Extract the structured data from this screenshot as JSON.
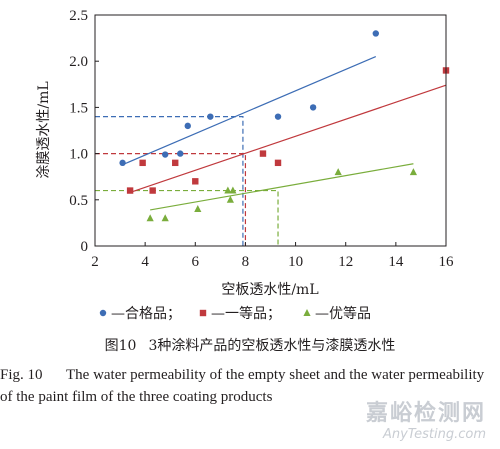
{
  "chart_data": {
    "type": "scatter",
    "xlabel": "空板透水性/mL",
    "ylabel": "涂膜透水性/mL",
    "xlim": [
      2,
      16
    ],
    "ylim": [
      0,
      2.5
    ],
    "xticks": [
      2,
      4,
      6,
      8,
      10,
      12,
      14,
      16
    ],
    "yticks": [
      0,
      0.5,
      1.0,
      1.5,
      2.0,
      2.5
    ],
    "ytick_labels": [
      "0",
      "0.5",
      "1.0",
      "1.5",
      "2.0",
      "2.5"
    ],
    "grid": false,
    "legend_position": "bottom",
    "series": [
      {
        "name": "合格品",
        "color": "#3d6db5",
        "marker": "circle",
        "points": [
          [
            3.1,
            0.9
          ],
          [
            4.8,
            0.99
          ],
          [
            5.4,
            1.0
          ],
          [
            5.7,
            1.3
          ],
          [
            6.6,
            1.4
          ],
          [
            9.3,
            1.4
          ],
          [
            10.7,
            1.5
          ],
          [
            13.2,
            2.3
          ]
        ],
        "fit": {
          "x": [
            3.1,
            13.2
          ],
          "y": [
            0.88,
            2.05
          ]
        },
        "reference": {
          "x": 7.9,
          "y": 1.4
        }
      },
      {
        "name": "一等品",
        "color": "#c0393d",
        "marker": "square",
        "points": [
          [
            3.4,
            0.6
          ],
          [
            3.9,
            0.9
          ],
          [
            4.3,
            0.6
          ],
          [
            5.2,
            0.9
          ],
          [
            6.0,
            0.7
          ],
          [
            8.7,
            1.0
          ],
          [
            9.3,
            0.9
          ],
          [
            16.0,
            1.9
          ]
        ],
        "fit": {
          "x": [
            3.4,
            16.0
          ],
          "y": [
            0.58,
            1.74
          ]
        },
        "reference": {
          "x": 8.0,
          "y": 1.0
        }
      },
      {
        "name": "优等品",
        "color": "#7aad3c",
        "marker": "triangle",
        "points": [
          [
            4.2,
            0.3
          ],
          [
            4.8,
            0.3
          ],
          [
            6.1,
            0.4
          ],
          [
            7.3,
            0.6
          ],
          [
            7.5,
            0.6
          ],
          [
            7.4,
            0.5
          ],
          [
            11.7,
            0.8
          ],
          [
            14.7,
            0.8
          ]
        ],
        "fit": {
          "x": [
            4.2,
            14.7
          ],
          "y": [
            0.39,
            0.89
          ]
        },
        "reference": {
          "x": 9.3,
          "y": 0.6
        }
      }
    ]
  },
  "legend": {
    "separator": "；",
    "dash": "—"
  },
  "caption": {
    "zh_number": "图10",
    "zh_text": "3种涂料产品的空板透水性与漆膜透水性",
    "en_number": "Fig. 10",
    "en_text": "The water permeability of the empty sheet and the water permeability of the paint film of the three coating products"
  },
  "watermark": {
    "brand": "嘉峪检测网",
    "site": "AnyTesting.com"
  }
}
